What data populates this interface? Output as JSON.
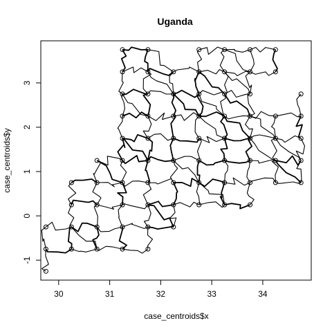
{
  "chart_data": {
    "type": "scatter",
    "title": "Uganda",
    "xlabel": "case_centroids$x",
    "ylabel": "case_centroids$y",
    "xlim": [
      29.65,
      34.95
    ],
    "ylim": [
      -1.45,
      3.95
    ],
    "x_ticks": [
      30,
      31,
      32,
      33,
      34
    ],
    "y_ticks": [
      -1,
      0,
      1,
      2,
      3
    ],
    "grid": false,
    "legend": "none",
    "points": [
      [
        31.25,
        3.75
      ],
      [
        31.75,
        3.75
      ],
      [
        32.75,
        3.75
      ],
      [
        33.25,
        3.75
      ],
      [
        33.75,
        3.75
      ],
      [
        34.25,
        3.75
      ],
      [
        31.25,
        3.25
      ],
      [
        31.75,
        3.25
      ],
      [
        32.25,
        3.25
      ],
      [
        32.75,
        3.25
      ],
      [
        33.25,
        3.25
      ],
      [
        33.75,
        3.25
      ],
      [
        34.25,
        3.25
      ],
      [
        31.25,
        2.75
      ],
      [
        31.75,
        2.75
      ],
      [
        32.25,
        2.75
      ],
      [
        32.75,
        2.75
      ],
      [
        33.25,
        2.75
      ],
      [
        33.75,
        2.75
      ],
      [
        34.75,
        2.75
      ],
      [
        31.25,
        2.25
      ],
      [
        31.75,
        2.25
      ],
      [
        32.25,
        2.25
      ],
      [
        32.75,
        2.25
      ],
      [
        33.25,
        2.25
      ],
      [
        33.75,
        2.25
      ],
      [
        34.25,
        2.25
      ],
      [
        34.75,
        2.25
      ],
      [
        31.25,
        1.75
      ],
      [
        31.75,
        1.75
      ],
      [
        32.25,
        1.75
      ],
      [
        32.75,
        1.75
      ],
      [
        33.25,
        1.75
      ],
      [
        33.75,
        1.75
      ],
      [
        34.25,
        1.75
      ],
      [
        34.75,
        1.75
      ],
      [
        30.75,
        1.25
      ],
      [
        31.25,
        1.25
      ],
      [
        31.75,
        1.25
      ],
      [
        32.25,
        1.25
      ],
      [
        32.75,
        1.25
      ],
      [
        33.25,
        1.25
      ],
      [
        33.75,
        1.25
      ],
      [
        34.25,
        1.25
      ],
      [
        34.75,
        1.25
      ],
      [
        30.25,
        0.75
      ],
      [
        30.75,
        0.75
      ],
      [
        31.25,
        0.75
      ],
      [
        31.75,
        0.75
      ],
      [
        32.25,
        0.75
      ],
      [
        32.75,
        0.75
      ],
      [
        33.25,
        0.75
      ],
      [
        33.75,
        0.75
      ],
      [
        34.25,
        0.75
      ],
      [
        34.75,
        0.75
      ],
      [
        30.25,
        0.25
      ],
      [
        30.75,
        0.25
      ],
      [
        31.25,
        0.25
      ],
      [
        31.75,
        0.25
      ],
      [
        32.25,
        0.25
      ],
      [
        32.75,
        0.25
      ],
      [
        33.25,
        0.25
      ],
      [
        33.75,
        0.25
      ],
      [
        29.75,
        -0.25
      ],
      [
        30.25,
        -0.25
      ],
      [
        30.75,
        -0.25
      ],
      [
        31.25,
        -0.25
      ],
      [
        31.75,
        -0.25
      ],
      [
        32.25,
        -0.25
      ],
      [
        29.75,
        -0.75
      ],
      [
        30.25,
        -0.75
      ],
      [
        30.75,
        -0.75
      ],
      [
        31.25,
        -0.75
      ],
      [
        31.75,
        -0.75
      ],
      [
        29.75,
        -1.25
      ]
    ]
  }
}
